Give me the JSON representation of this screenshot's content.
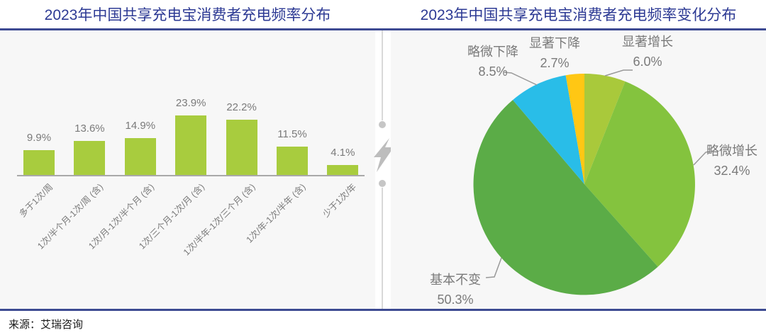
{
  "page": {
    "source_label": "来源：艾瑞咨询"
  },
  "colors": {
    "accent_navy": "#3D4A92",
    "title_blue": "#2D3A94",
    "panel_bg": "#F7F7F7",
    "label_gray": "#7A7A7A",
    "leader_gray": "#999999",
    "bar_green": "#A8CC3E"
  },
  "icons": {
    "divider_icon": "lightning-bolt"
  },
  "chart_data": [
    {
      "type": "bar",
      "title": "2023年中国共享充电宝消费者充电频率分布",
      "categories": [
        "多于1次/周",
        "1次/半个月-1次/周 (含)",
        "1次/月-1次/半个月 (含)",
        "1次/三个月-1次/月 (含)",
        "1次/半年-1次/三个月 (含)",
        "1次/年-1次/半年 (含)",
        "少于1次/年"
      ],
      "values": [
        9.9,
        13.6,
        14.9,
        23.9,
        22.2,
        11.5,
        4.1
      ],
      "unit": "%",
      "bar_color": "#A8CC3E",
      "ylim": [
        0,
        30
      ],
      "grid": false,
      "value_labels": true,
      "xlabel": "",
      "ylabel": ""
    },
    {
      "type": "pie",
      "title": "2023年中国共享充电宝消费者充电频率变化分布",
      "start_at": "top",
      "direction": "clockwise",
      "slices": [
        {
          "label": "显著增长",
          "value": 6.0,
          "color": "#A9C93B"
        },
        {
          "label": "略微增长",
          "value": 32.4,
          "color": "#84C33E"
        },
        {
          "label": "基本不变",
          "value": 50.3,
          "color": "#5BAC47"
        },
        {
          "label": "略微下降",
          "value": 8.5,
          "color": "#29BDE8"
        },
        {
          "label": "显著下降",
          "value": 2.7,
          "color": "#FFC714"
        }
      ]
    }
  ]
}
